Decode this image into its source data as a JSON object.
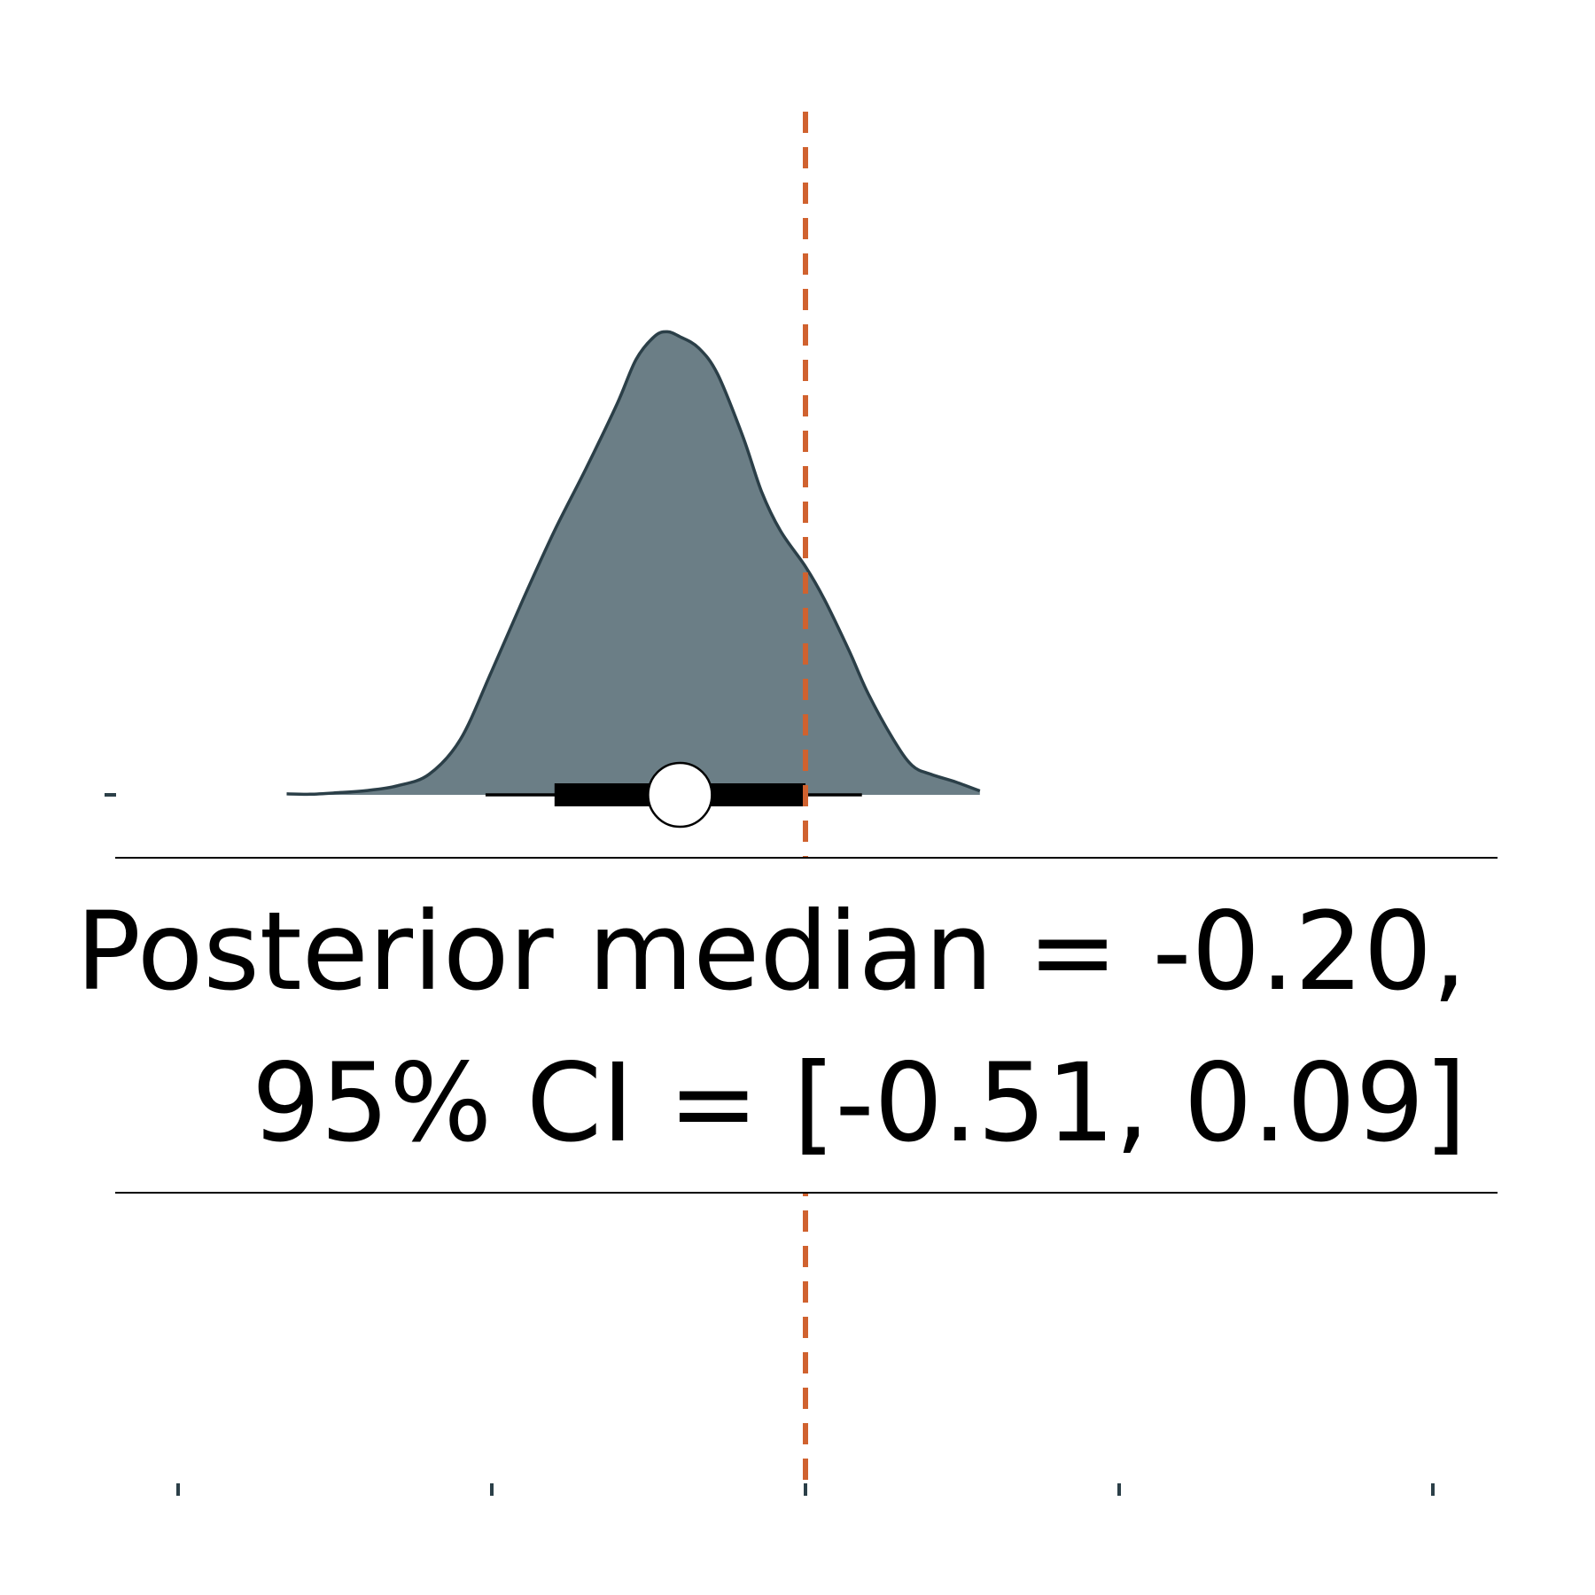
{
  "chart_data": {
    "type": "area",
    "title": "",
    "xlabel": "",
    "ylabel": "",
    "xlim": [
      -1.0,
      1.0
    ],
    "xticks": [
      -1.0,
      -0.5,
      0.0,
      0.5,
      1.0
    ],
    "grid": false,
    "legend": "none",
    "series": [
      {
        "x": [
          -0.827,
          -0.79,
          -0.75,
          -0.7,
          -0.65,
          -0.6,
          -0.55,
          -0.5,
          -0.45,
          -0.4,
          -0.35,
          -0.3,
          -0.27,
          -0.24,
          -0.22,
          -0.2,
          -0.17,
          -0.14,
          -0.1,
          -0.07,
          -0.04,
          0.0,
          0.03,
          0.07,
          0.1,
          0.14,
          0.17,
          0.2,
          0.24,
          0.278
        ],
        "density": [
          0.003,
          0.002,
          0.006,
          0.013,
          0.028,
          0.063,
          0.17,
          0.38,
          0.6,
          0.81,
          1.0,
          1.2,
          1.335,
          1.407,
          1.42,
          1.405,
          1.37,
          1.29,
          1.1,
          0.93,
          0.81,
          0.7,
          0.6,
          0.44,
          0.31,
          0.17,
          0.09,
          0.063,
          0.039,
          0.012
        ]
      }
    ],
    "interval": {
      "median": -0.2,
      "ci95": [
        -0.51,
        0.09
      ],
      "ci_inner": [
        -0.4,
        0.0
      ]
    },
    "reference_line": {
      "x": 0.0
    },
    "annotation": {
      "line1": "Posterior median = -0.20,",
      "line2": "95% CI = [-0.51, 0.09]"
    },
    "colors": {
      "density_fill": "#6b7e86",
      "density_edge": "#2b3f48",
      "reference_line": "#d0622f",
      "interval": "#000000",
      "median_marker": "#ffffff",
      "axis": "#2b3f48"
    }
  }
}
